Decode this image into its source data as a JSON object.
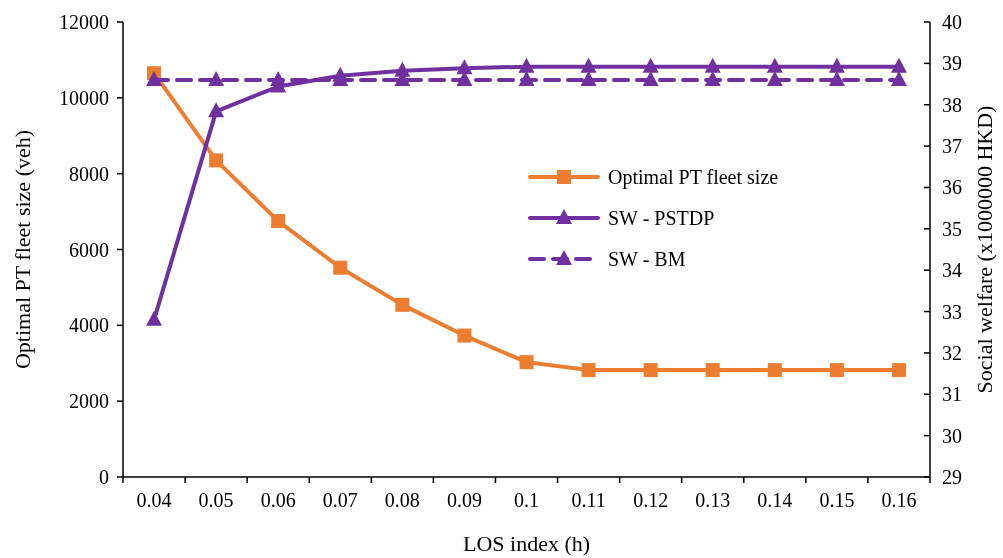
{
  "chart_data": {
    "type": "line",
    "xlabel": "LOS index (h)",
    "ylabel": "Optimal PT fleet size (veh)",
    "y2label": "Social welfare (x1000000 HKD)",
    "categories": [
      "0.04",
      "0.05",
      "0.06",
      "0.07",
      "0.08",
      "0.09",
      "0.1",
      "0.11",
      "0.12",
      "0.13",
      "0.14",
      "0.15",
      "0.16"
    ],
    "ylim": [
      0,
      12000
    ],
    "yticks": [
      0,
      2000,
      4000,
      6000,
      8000,
      10000,
      12000
    ],
    "y2lim": [
      29,
      40
    ],
    "y2ticks": [
      29,
      30,
      31,
      32,
      33,
      34,
      35,
      36,
      37,
      38,
      39,
      40
    ],
    "grid": false,
    "legend": "right",
    "series": [
      {
        "name": "Optimal PT fleet size",
        "color": "#ed7d31",
        "marker": "square",
        "line_style": "solid",
        "values": [
          10650,
          8350,
          6750,
          5520,
          4540,
          3730,
          3030,
          2820,
          2820,
          2820,
          2820,
          2820,
          2820
        ]
      },
      {
        "name": "SW - PSTDP",
        "color": "#7030a0",
        "marker": "triangle",
        "line_style": "solid",
        "axis": "y2",
        "values": [
          32.8,
          37.84,
          38.44,
          38.7,
          38.82,
          38.88,
          38.92,
          38.92,
          38.92,
          38.92,
          38.92,
          38.92,
          38.92
        ]
      },
      {
        "name": "SW - BM",
        "color": "#7030a0",
        "marker": "triangle",
        "line_style": "dashed",
        "axis": "y2",
        "values": [
          38.6,
          38.6,
          38.6,
          38.6,
          38.6,
          38.6,
          38.6,
          38.6,
          38.6,
          38.6,
          38.6,
          38.6,
          38.6
        ]
      }
    ]
  }
}
